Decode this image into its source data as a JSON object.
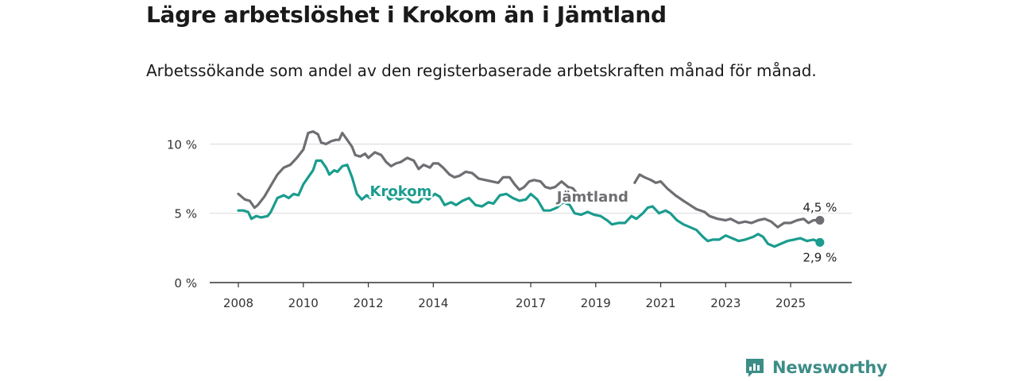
{
  "title": "Lägre arbetslöshet i Krokom än i Jämtland",
  "subtitle": "Arbetssökande som andel av den registerbaserade arbetskraften månad för månad.",
  "brand": {
    "name": "Newsworthy",
    "icon": "newsworthy-logo-icon",
    "color": "#3d8d87"
  },
  "chart_data": {
    "type": "line",
    "title": "Lägre arbetslöshet i Krokom än i Jämtland",
    "xlabel": "",
    "ylabel": "",
    "xlim": [
      2008.0,
      2026.0
    ],
    "ylim": [
      0,
      11
    ],
    "grid": true,
    "y_ticks": [
      {
        "value": 0,
        "label": "0 %"
      },
      {
        "value": 5,
        "label": "5 %"
      },
      {
        "value": 10,
        "label": "10 %"
      }
    ],
    "x_ticks": [
      {
        "value": 2008,
        "label": "2008"
      },
      {
        "value": 2010,
        "label": "2010"
      },
      {
        "value": 2012,
        "label": "2012"
      },
      {
        "value": 2014,
        "label": "2014"
      },
      {
        "value": 2017,
        "label": "2017"
      },
      {
        "value": 2019,
        "label": "2019"
      },
      {
        "value": 2021,
        "label": "2021"
      },
      {
        "value": 2023,
        "label": "2023"
      },
      {
        "value": 2025,
        "label": "2025"
      }
    ],
    "series": [
      {
        "name": "Jämtland",
        "color": "#6e6e73",
        "label_at": [
          2017.8,
          6.2
        ],
        "end_label": "4,5 %",
        "points": [
          [
            2008.0,
            6.4
          ],
          [
            2008.2,
            6.0
          ],
          [
            2008.35,
            5.9
          ],
          [
            2008.5,
            5.4
          ],
          [
            2008.6,
            5.6
          ],
          [
            2008.8,
            6.2
          ],
          [
            2009.0,
            7.0
          ],
          [
            2009.2,
            7.8
          ],
          [
            2009.4,
            8.3
          ],
          [
            2009.6,
            8.5
          ],
          [
            2009.8,
            9.0
          ],
          [
            2010.0,
            9.6
          ],
          [
            2010.15,
            10.8
          ],
          [
            2010.3,
            10.9
          ],
          [
            2010.45,
            10.7
          ],
          [
            2010.55,
            10.1
          ],
          [
            2010.7,
            10.0
          ],
          [
            2010.85,
            10.2
          ],
          [
            2011.0,
            10.3
          ],
          [
            2011.1,
            10.3
          ],
          [
            2011.2,
            10.8
          ],
          [
            2011.35,
            10.3
          ],
          [
            2011.5,
            9.8
          ],
          [
            2011.6,
            9.2
          ],
          [
            2011.75,
            9.1
          ],
          [
            2011.9,
            9.3
          ],
          [
            2012.0,
            9.0
          ],
          [
            2012.2,
            9.4
          ],
          [
            2012.4,
            9.2
          ],
          [
            2012.55,
            8.7
          ],
          [
            2012.7,
            8.4
          ],
          [
            2012.85,
            8.6
          ],
          [
            2013.0,
            8.7
          ],
          [
            2013.2,
            9.0
          ],
          [
            2013.4,
            8.8
          ],
          [
            2013.55,
            8.2
          ],
          [
            2013.7,
            8.5
          ],
          [
            2013.9,
            8.3
          ],
          [
            2014.0,
            8.6
          ],
          [
            2014.15,
            8.6
          ],
          [
            2014.3,
            8.3
          ],
          [
            2014.5,
            7.8
          ],
          [
            2014.65,
            7.6
          ],
          [
            2014.8,
            7.7
          ],
          [
            2015.0,
            8.0
          ],
          [
            2015.2,
            7.9
          ],
          [
            2015.4,
            7.5
          ],
          [
            2015.6,
            7.4
          ],
          [
            2015.8,
            7.3
          ],
          [
            2016.0,
            7.2
          ],
          [
            2016.15,
            7.6
          ],
          [
            2016.35,
            7.6
          ],
          [
            2016.5,
            7.1
          ],
          [
            2016.65,
            6.7
          ],
          [
            2016.8,
            6.9
          ],
          [
            2016.95,
            7.3
          ],
          [
            2017.1,
            7.4
          ],
          [
            2017.3,
            7.3
          ],
          [
            2017.45,
            6.9
          ],
          [
            2017.6,
            6.8
          ],
          [
            2017.75,
            6.9
          ],
          [
            2017.95,
            7.3
          ],
          [
            2018.15,
            6.9
          ],
          [
            2018.3,
            6.8
          ],
          [
            2018.5,
            6.2
          ],
          [
            2018.65,
            6.1
          ],
          [
            2020.2,
            7.2
          ],
          [
            2020.35,
            7.8
          ],
          [
            2020.5,
            7.6
          ],
          [
            2020.7,
            7.4
          ],
          [
            2020.85,
            7.2
          ],
          [
            2021.0,
            7.3
          ],
          [
            2021.2,
            6.8
          ],
          [
            2021.45,
            6.3
          ],
          [
            2021.7,
            5.9
          ],
          [
            2021.9,
            5.6
          ],
          [
            2022.1,
            5.3
          ],
          [
            2022.35,
            5.1
          ],
          [
            2022.5,
            4.8
          ],
          [
            2022.75,
            4.6
          ],
          [
            2023.0,
            4.5
          ],
          [
            2023.15,
            4.6
          ],
          [
            2023.4,
            4.3
          ],
          [
            2023.6,
            4.4
          ],
          [
            2023.8,
            4.3
          ],
          [
            2024.0,
            4.5
          ],
          [
            2024.2,
            4.6
          ],
          [
            2024.4,
            4.4
          ],
          [
            2024.6,
            4.0
          ],
          [
            2024.8,
            4.3
          ],
          [
            2025.0,
            4.3
          ],
          [
            2025.2,
            4.5
          ],
          [
            2025.4,
            4.6
          ],
          [
            2025.55,
            4.3
          ],
          [
            2025.7,
            4.5
          ],
          [
            2025.9,
            4.5
          ]
        ]
      },
      {
        "name": "Krokom",
        "color": "#1a9c8e",
        "label_at": [
          2013.0,
          6.6
        ],
        "end_label": "2,9 %",
        "points": [
          [
            2008.0,
            5.2
          ],
          [
            2008.15,
            5.2
          ],
          [
            2008.3,
            5.1
          ],
          [
            2008.4,
            4.6
          ],
          [
            2008.55,
            4.8
          ],
          [
            2008.7,
            4.7
          ],
          [
            2008.9,
            4.8
          ],
          [
            2009.0,
            5.1
          ],
          [
            2009.2,
            6.1
          ],
          [
            2009.4,
            6.3
          ],
          [
            2009.55,
            6.1
          ],
          [
            2009.7,
            6.4
          ],
          [
            2009.85,
            6.3
          ],
          [
            2010.0,
            7.1
          ],
          [
            2010.15,
            7.6
          ],
          [
            2010.3,
            8.1
          ],
          [
            2010.4,
            8.8
          ],
          [
            2010.55,
            8.8
          ],
          [
            2010.7,
            8.3
          ],
          [
            2010.8,
            7.8
          ],
          [
            2010.95,
            8.1
          ],
          [
            2011.05,
            8.0
          ],
          [
            2011.2,
            8.4
          ],
          [
            2011.35,
            8.5
          ],
          [
            2011.5,
            7.6
          ],
          [
            2011.65,
            6.4
          ],
          [
            2011.8,
            6.0
          ],
          [
            2011.95,
            6.3
          ],
          [
            2012.05,
            6.1
          ],
          [
            2012.2,
            6.5
          ],
          [
            2012.35,
            6.2
          ],
          [
            2012.5,
            6.4
          ],
          [
            2012.65,
            6.0
          ],
          [
            2012.8,
            6.2
          ],
          [
            2012.95,
            6.0
          ],
          [
            2013.15,
            6.2
          ],
          [
            2013.35,
            5.8
          ],
          [
            2013.55,
            5.8
          ],
          [
            2013.7,
            6.2
          ],
          [
            2013.85,
            6.0
          ],
          [
            2014.05,
            6.4
          ],
          [
            2014.2,
            6.2
          ],
          [
            2014.35,
            5.6
          ],
          [
            2014.55,
            5.8
          ],
          [
            2014.7,
            5.6
          ],
          [
            2014.9,
            5.9
          ],
          [
            2015.1,
            6.1
          ],
          [
            2015.3,
            5.6
          ],
          [
            2015.5,
            5.5
          ],
          [
            2015.7,
            5.8
          ],
          [
            2015.85,
            5.7
          ],
          [
            2016.05,
            6.3
          ],
          [
            2016.25,
            6.4
          ],
          [
            2016.45,
            6.1
          ],
          [
            2016.65,
            5.9
          ],
          [
            2016.85,
            6.0
          ],
          [
            2017.0,
            6.4
          ],
          [
            2017.2,
            6.0
          ],
          [
            2017.4,
            5.2
          ],
          [
            2017.6,
            5.2
          ],
          [
            2017.8,
            5.4
          ],
          [
            2018.0,
            5.8
          ],
          [
            2018.2,
            5.6
          ],
          [
            2018.35,
            5.0
          ],
          [
            2018.55,
            4.9
          ],
          [
            2018.75,
            5.1
          ],
          [
            2018.95,
            4.9
          ],
          [
            2019.15,
            4.8
          ],
          [
            2019.35,
            4.5
          ],
          [
            2019.5,
            4.2
          ],
          [
            2019.7,
            4.3
          ],
          [
            2019.9,
            4.3
          ],
          [
            2020.1,
            4.8
          ],
          [
            2020.25,
            4.6
          ],
          [
            2020.45,
            5.0
          ],
          [
            2020.6,
            5.4
          ],
          [
            2020.75,
            5.5
          ],
          [
            2020.95,
            5.0
          ],
          [
            2021.15,
            5.2
          ],
          [
            2021.3,
            5.0
          ],
          [
            2021.5,
            4.5
          ],
          [
            2021.7,
            4.2
          ],
          [
            2021.9,
            4.0
          ],
          [
            2022.1,
            3.8
          ],
          [
            2022.3,
            3.3
          ],
          [
            2022.45,
            3.0
          ],
          [
            2022.6,
            3.1
          ],
          [
            2022.8,
            3.1
          ],
          [
            2023.0,
            3.4
          ],
          [
            2023.2,
            3.2
          ],
          [
            2023.4,
            3.0
          ],
          [
            2023.6,
            3.1
          ],
          [
            2023.85,
            3.3
          ],
          [
            2024.0,
            3.5
          ],
          [
            2024.15,
            3.3
          ],
          [
            2024.3,
            2.8
          ],
          [
            2024.5,
            2.6
          ],
          [
            2024.7,
            2.8
          ],
          [
            2024.9,
            3.0
          ],
          [
            2025.1,
            3.1
          ],
          [
            2025.3,
            3.2
          ],
          [
            2025.5,
            3.0
          ],
          [
            2025.7,
            3.1
          ],
          [
            2025.9,
            2.9
          ]
        ]
      }
    ]
  }
}
